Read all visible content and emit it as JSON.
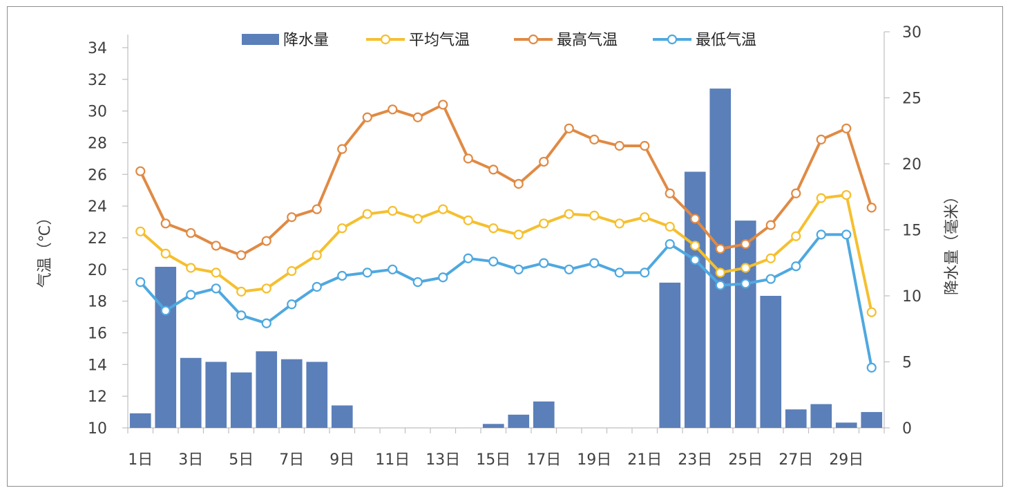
{
  "chart_data": {
    "type": "bar+line",
    "categories": [
      "1日",
      "2日",
      "3日",
      "4日",
      "5日",
      "6日",
      "7日",
      "8日",
      "9日",
      "10日",
      "11日",
      "12日",
      "13日",
      "14日",
      "15日",
      "16日",
      "17日",
      "18日",
      "19日",
      "20日",
      "21日",
      "22日",
      "23日",
      "24日",
      "25日",
      "26日",
      "27日",
      "28日",
      "29日",
      "30日"
    ],
    "x_tick_labels": [
      "1日",
      "3日",
      "5日",
      "7日",
      "9日",
      "11日",
      "13日",
      "15日",
      "17日",
      "19日",
      "21日",
      "23日",
      "25日",
      "27日",
      "29日"
    ],
    "y_left": {
      "label": "气温（℃）",
      "min": 10,
      "max": 35,
      "ticks": [
        10,
        12,
        14,
        16,
        18,
        20,
        22,
        24,
        26,
        28,
        30,
        32,
        34
      ]
    },
    "y_right": {
      "label": "降水量（毫米）",
      "min": 0,
      "max": 30,
      "ticks": [
        0,
        5,
        10,
        15,
        20,
        25,
        30
      ]
    },
    "series": [
      {
        "name": "降水量",
        "type": "bar",
        "axis": "right",
        "color": "#5b7fb9",
        "values": [
          1.1,
          12.2,
          5.3,
          5.0,
          4.2,
          5.8,
          5.2,
          5.0,
          1.7,
          0,
          0,
          0,
          0,
          0,
          0.3,
          1.0,
          2.0,
          0,
          0,
          0,
          0,
          11.0,
          19.4,
          25.7,
          15.7,
          10.0,
          1.4,
          1.8,
          0.4,
          1.2
        ]
      },
      {
        "name": "平均气温",
        "type": "line",
        "axis": "left",
        "color": "#f5bf2e",
        "values": [
          22.4,
          21.0,
          20.1,
          19.8,
          18.6,
          18.8,
          19.9,
          20.9,
          22.6,
          23.5,
          23.7,
          23.2,
          23.8,
          23.1,
          22.6,
          22.2,
          22.9,
          23.5,
          23.4,
          22.9,
          23.3,
          22.7,
          21.5,
          19.8,
          20.1,
          20.7,
          22.1,
          24.5,
          24.7,
          17.3
        ]
      },
      {
        "name": "最高气温",
        "type": "line",
        "axis": "left",
        "color": "#e08a44",
        "values": [
          26.2,
          22.9,
          22.3,
          21.5,
          20.9,
          21.8,
          23.3,
          23.8,
          27.6,
          29.6,
          30.1,
          29.6,
          30.4,
          27.0,
          26.3,
          25.4,
          26.8,
          28.9,
          28.2,
          27.8,
          27.8,
          24.8,
          23.2,
          21.3,
          21.6,
          22.8,
          24.8,
          28.2,
          28.9,
          23.9
        ]
      },
      {
        "name": "最低气温",
        "type": "line",
        "axis": "left",
        "color": "#4ea8e0",
        "values": [
          19.2,
          17.4,
          18.4,
          18.8,
          17.1,
          16.6,
          17.8,
          18.9,
          19.6,
          19.8,
          20.0,
          19.2,
          19.5,
          20.7,
          20.5,
          20.0,
          20.4,
          20.0,
          20.4,
          19.8,
          19.8,
          21.6,
          20.6,
          19.0,
          19.1,
          19.4,
          20.2,
          22.2,
          22.2,
          13.8
        ]
      }
    ],
    "legend_position": "top"
  }
}
